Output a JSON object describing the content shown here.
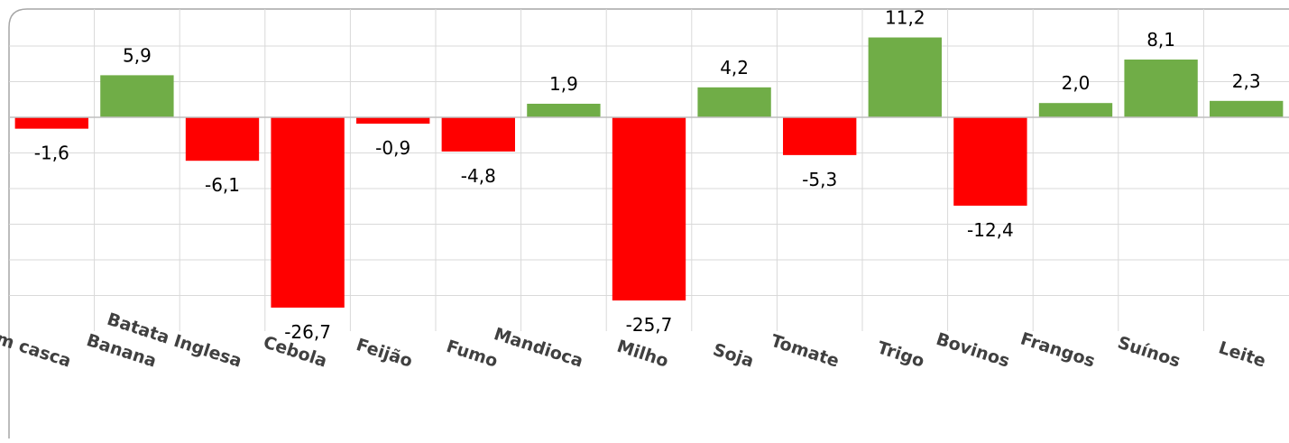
{
  "chart_data": {
    "type": "bar",
    "title": "",
    "xlabel": "",
    "ylabel": "",
    "categories": [
      "Arroz em casca",
      "Banana",
      "Batata Inglesa",
      "Cebola",
      "Feijão",
      "Fumo",
      "Mandioca",
      "Milho",
      "Soja",
      "Tomate",
      "Trigo",
      "Bovinos",
      "Frangos",
      "Suínos",
      "Leite"
    ],
    "values": [
      -1.6,
      5.9,
      -6.1,
      -26.7,
      -0.9,
      -4.8,
      1.9,
      -25.7,
      4.2,
      -5.3,
      11.2,
      -12.4,
      2.0,
      8.1,
      2.3
    ],
    "value_labels": [
      "-1,6",
      "5,9",
      "-6,1",
      "-26,7",
      "-0,9",
      "-4,8",
      "1,9",
      "-25,7",
      "4,2",
      "-5,3",
      "11,2",
      "-12,4",
      "2,0",
      "8,1",
      "2,3"
    ],
    "ylim": [
      -30,
      15
    ],
    "gridlines": true,
    "legend": "none",
    "colors": {
      "positive": "#70ad47",
      "negative": "#ff0000",
      "grid": "#d9d9d9",
      "border": "#a6a6a6"
    }
  }
}
